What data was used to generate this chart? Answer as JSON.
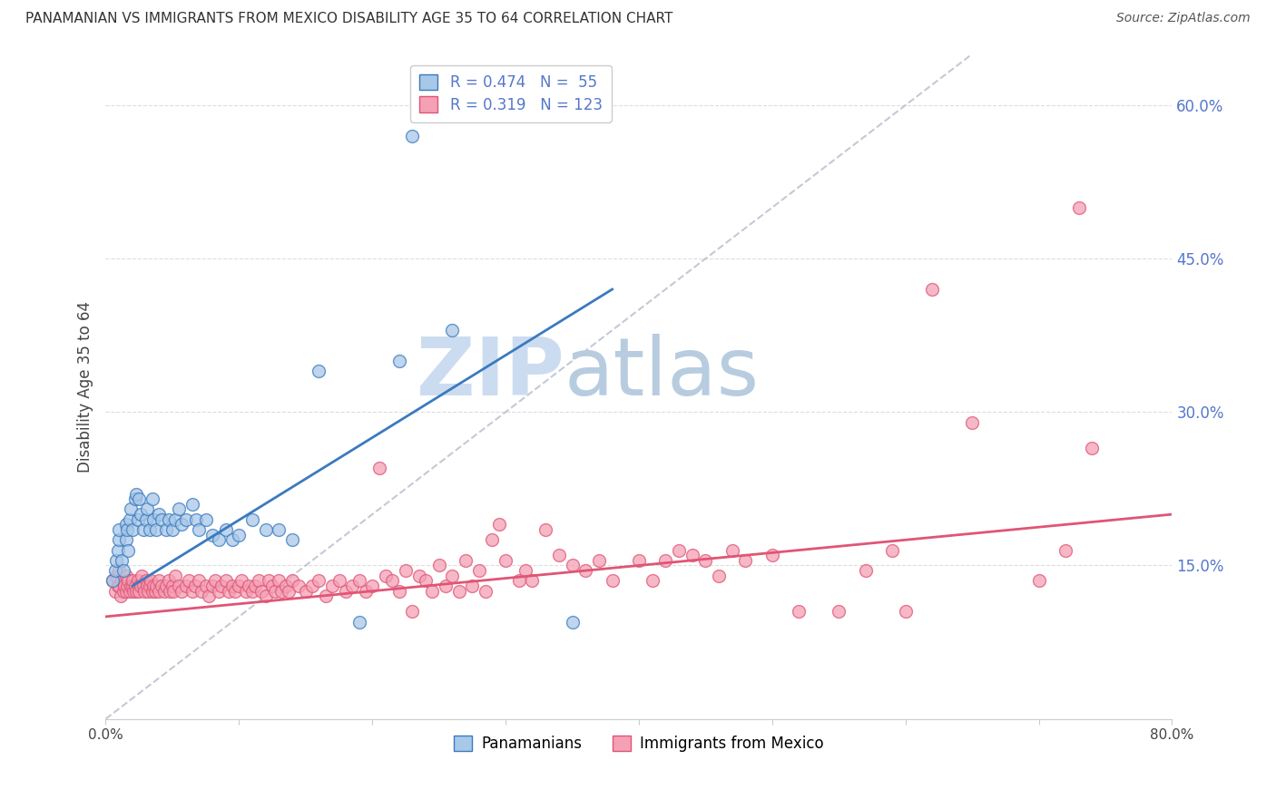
{
  "title": "PANAMANIAN VS IMMIGRANTS FROM MEXICO DISABILITY AGE 35 TO 64 CORRELATION CHART",
  "source": "Source: ZipAtlas.com",
  "ylabel": "Disability Age 35 to 64",
  "xmin": 0.0,
  "xmax": 0.8,
  "ymin": 0.0,
  "ymax": 0.65,
  "blue_color": "#a8c8e8",
  "pink_color": "#f4a0b5",
  "line_blue": "#3a7abf",
  "line_pink": "#e05575",
  "line_ref": "#b0b8c8",
  "watermark_zip": "ZIP",
  "watermark_atlas": "atlas",
  "watermark_color_zip": "#c8d8ee",
  "watermark_color_atlas": "#b0c8d8",
  "blue_points": [
    [
      0.005,
      0.135
    ],
    [
      0.007,
      0.145
    ],
    [
      0.008,
      0.155
    ],
    [
      0.009,
      0.165
    ],
    [
      0.01,
      0.175
    ],
    [
      0.01,
      0.185
    ],
    [
      0.012,
      0.155
    ],
    [
      0.013,
      0.145
    ],
    [
      0.015,
      0.175
    ],
    [
      0.015,
      0.19
    ],
    [
      0.016,
      0.185
    ],
    [
      0.017,
      0.165
    ],
    [
      0.018,
      0.195
    ],
    [
      0.019,
      0.205
    ],
    [
      0.02,
      0.185
    ],
    [
      0.022,
      0.215
    ],
    [
      0.023,
      0.22
    ],
    [
      0.024,
      0.195
    ],
    [
      0.025,
      0.215
    ],
    [
      0.026,
      0.2
    ],
    [
      0.028,
      0.185
    ],
    [
      0.03,
      0.195
    ],
    [
      0.031,
      0.205
    ],
    [
      0.033,
      0.185
    ],
    [
      0.035,
      0.215
    ],
    [
      0.036,
      0.195
    ],
    [
      0.038,
      0.185
    ],
    [
      0.04,
      0.2
    ],
    [
      0.042,
      0.195
    ],
    [
      0.045,
      0.185
    ],
    [
      0.047,
      0.195
    ],
    [
      0.05,
      0.185
    ],
    [
      0.052,
      0.195
    ],
    [
      0.055,
      0.205
    ],
    [
      0.057,
      0.19
    ],
    [
      0.06,
      0.195
    ],
    [
      0.065,
      0.21
    ],
    [
      0.068,
      0.195
    ],
    [
      0.07,
      0.185
    ],
    [
      0.075,
      0.195
    ],
    [
      0.08,
      0.18
    ],
    [
      0.085,
      0.175
    ],
    [
      0.09,
      0.185
    ],
    [
      0.095,
      0.175
    ],
    [
      0.1,
      0.18
    ],
    [
      0.11,
      0.195
    ],
    [
      0.12,
      0.185
    ],
    [
      0.13,
      0.185
    ],
    [
      0.14,
      0.175
    ],
    [
      0.16,
      0.34
    ],
    [
      0.19,
      0.095
    ],
    [
      0.22,
      0.35
    ],
    [
      0.23,
      0.57
    ],
    [
      0.26,
      0.38
    ],
    [
      0.35,
      0.095
    ]
  ],
  "pink_points": [
    [
      0.005,
      0.135
    ],
    [
      0.007,
      0.125
    ],
    [
      0.008,
      0.14
    ],
    [
      0.009,
      0.13
    ],
    [
      0.01,
      0.13
    ],
    [
      0.01,
      0.145
    ],
    [
      0.011,
      0.12
    ],
    [
      0.012,
      0.135
    ],
    [
      0.013,
      0.125
    ],
    [
      0.014,
      0.13
    ],
    [
      0.015,
      0.125
    ],
    [
      0.015,
      0.14
    ],
    [
      0.016,
      0.13
    ],
    [
      0.017,
      0.135
    ],
    [
      0.018,
      0.125
    ],
    [
      0.019,
      0.13
    ],
    [
      0.02,
      0.13
    ],
    [
      0.02,
      0.135
    ],
    [
      0.021,
      0.125
    ],
    [
      0.022,
      0.13
    ],
    [
      0.023,
      0.125
    ],
    [
      0.024,
      0.135
    ],
    [
      0.025,
      0.13
    ],
    [
      0.025,
      0.125
    ],
    [
      0.026,
      0.13
    ],
    [
      0.027,
      0.14
    ],
    [
      0.028,
      0.13
    ],
    [
      0.029,
      0.125
    ],
    [
      0.03,
      0.135
    ],
    [
      0.031,
      0.13
    ],
    [
      0.032,
      0.125
    ],
    [
      0.033,
      0.13
    ],
    [
      0.034,
      0.135
    ],
    [
      0.035,
      0.125
    ],
    [
      0.036,
      0.13
    ],
    [
      0.037,
      0.125
    ],
    [
      0.038,
      0.13
    ],
    [
      0.04,
      0.135
    ],
    [
      0.04,
      0.125
    ],
    [
      0.042,
      0.13
    ],
    [
      0.044,
      0.125
    ],
    [
      0.045,
      0.13
    ],
    [
      0.047,
      0.135
    ],
    [
      0.048,
      0.125
    ],
    [
      0.05,
      0.13
    ],
    [
      0.051,
      0.125
    ],
    [
      0.052,
      0.14
    ],
    [
      0.055,
      0.13
    ],
    [
      0.057,
      0.125
    ],
    [
      0.06,
      0.13
    ],
    [
      0.062,
      0.135
    ],
    [
      0.065,
      0.125
    ],
    [
      0.067,
      0.13
    ],
    [
      0.07,
      0.135
    ],
    [
      0.072,
      0.125
    ],
    [
      0.075,
      0.13
    ],
    [
      0.077,
      0.12
    ],
    [
      0.08,
      0.13
    ],
    [
      0.082,
      0.135
    ],
    [
      0.085,
      0.125
    ],
    [
      0.087,
      0.13
    ],
    [
      0.09,
      0.135
    ],
    [
      0.092,
      0.125
    ],
    [
      0.095,
      0.13
    ],
    [
      0.097,
      0.125
    ],
    [
      0.1,
      0.13
    ],
    [
      0.102,
      0.135
    ],
    [
      0.105,
      0.125
    ],
    [
      0.107,
      0.13
    ],
    [
      0.11,
      0.125
    ],
    [
      0.112,
      0.13
    ],
    [
      0.115,
      0.135
    ],
    [
      0.117,
      0.125
    ],
    [
      0.12,
      0.12
    ],
    [
      0.122,
      0.135
    ],
    [
      0.125,
      0.13
    ],
    [
      0.127,
      0.125
    ],
    [
      0.13,
      0.135
    ],
    [
      0.132,
      0.125
    ],
    [
      0.135,
      0.13
    ],
    [
      0.137,
      0.125
    ],
    [
      0.14,
      0.135
    ],
    [
      0.145,
      0.13
    ],
    [
      0.15,
      0.125
    ],
    [
      0.155,
      0.13
    ],
    [
      0.16,
      0.135
    ],
    [
      0.165,
      0.12
    ],
    [
      0.17,
      0.13
    ],
    [
      0.175,
      0.135
    ],
    [
      0.18,
      0.125
    ],
    [
      0.185,
      0.13
    ],
    [
      0.19,
      0.135
    ],
    [
      0.195,
      0.125
    ],
    [
      0.2,
      0.13
    ],
    [
      0.205,
      0.245
    ],
    [
      0.21,
      0.14
    ],
    [
      0.215,
      0.135
    ],
    [
      0.22,
      0.125
    ],
    [
      0.225,
      0.145
    ],
    [
      0.23,
      0.105
    ],
    [
      0.235,
      0.14
    ],
    [
      0.24,
      0.135
    ],
    [
      0.245,
      0.125
    ],
    [
      0.25,
      0.15
    ],
    [
      0.255,
      0.13
    ],
    [
      0.26,
      0.14
    ],
    [
      0.265,
      0.125
    ],
    [
      0.27,
      0.155
    ],
    [
      0.275,
      0.13
    ],
    [
      0.28,
      0.145
    ],
    [
      0.285,
      0.125
    ],
    [
      0.29,
      0.175
    ],
    [
      0.295,
      0.19
    ],
    [
      0.3,
      0.155
    ],
    [
      0.31,
      0.135
    ],
    [
      0.315,
      0.145
    ],
    [
      0.32,
      0.135
    ],
    [
      0.33,
      0.185
    ],
    [
      0.34,
      0.16
    ],
    [
      0.35,
      0.15
    ],
    [
      0.36,
      0.145
    ],
    [
      0.37,
      0.155
    ],
    [
      0.38,
      0.135
    ],
    [
      0.4,
      0.155
    ],
    [
      0.41,
      0.135
    ],
    [
      0.42,
      0.155
    ],
    [
      0.43,
      0.165
    ],
    [
      0.44,
      0.16
    ],
    [
      0.45,
      0.155
    ],
    [
      0.46,
      0.14
    ],
    [
      0.47,
      0.165
    ],
    [
      0.48,
      0.155
    ],
    [
      0.5,
      0.16
    ],
    [
      0.52,
      0.105
    ],
    [
      0.55,
      0.105
    ],
    [
      0.57,
      0.145
    ],
    [
      0.59,
      0.165
    ],
    [
      0.6,
      0.105
    ],
    [
      0.62,
      0.42
    ],
    [
      0.65,
      0.29
    ],
    [
      0.7,
      0.135
    ],
    [
      0.72,
      0.165
    ],
    [
      0.73,
      0.5
    ],
    [
      0.74,
      0.265
    ]
  ],
  "blue_line": [
    [
      0.02,
      0.13
    ],
    [
      0.38,
      0.42
    ]
  ],
  "pink_line": [
    [
      0.0,
      0.1
    ],
    [
      0.8,
      0.2
    ]
  ],
  "ref_line": [
    [
      0.0,
      0.0
    ],
    [
      0.65,
      0.65
    ]
  ],
  "background_color": "#ffffff",
  "grid_color": "#dddddd",
  "tick_color": "#5577cc"
}
